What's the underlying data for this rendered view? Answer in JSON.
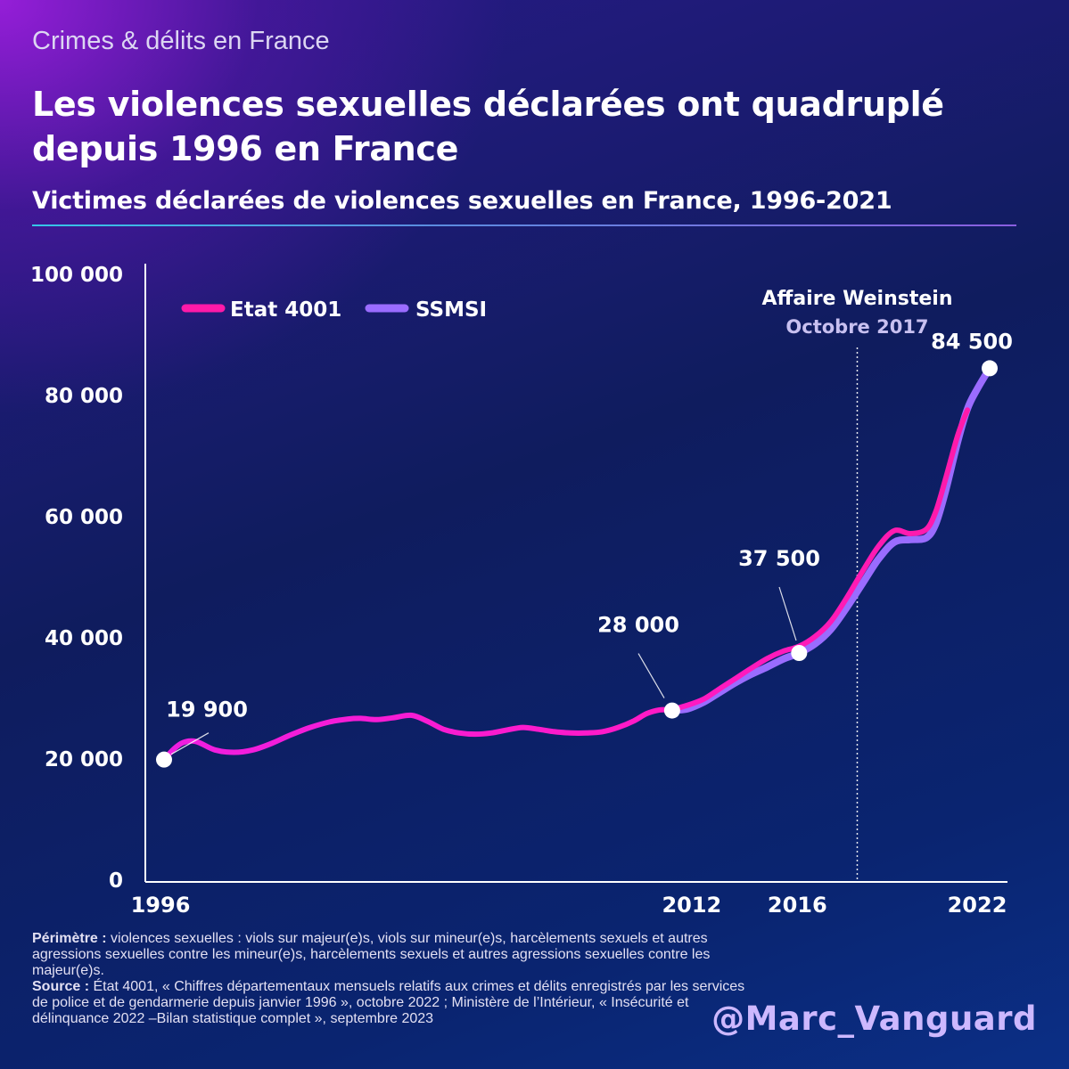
{
  "header": {
    "kicker": "Crimes & délits en France",
    "title": "Les violences sexuelles déclarées ont quadruplé depuis 1996 en France"
  },
  "chart_data": {
    "type": "line",
    "title": "Victimes déclarées de violences sexuelles en France, 1996-2021",
    "xlabel": "",
    "ylabel": "",
    "xlim": [
      1996,
      2022
    ],
    "ylim": [
      0,
      100000
    ],
    "y_ticks": [
      0,
      20000,
      40000,
      60000,
      80000,
      100000
    ],
    "y_tick_labels": [
      "0",
      "20 000",
      "40 000",
      "60 000",
      "80 000",
      "100 000"
    ],
    "x_tick_labels": [
      {
        "x": 1996,
        "label": "1996"
      },
      {
        "x": 2012,
        "label": "2012"
      },
      {
        "x": 2016,
        "label": "2016"
      },
      {
        "x": 2022,
        "label": "2022"
      }
    ],
    "series": [
      {
        "name": "Etat 4001",
        "color": "#ff1aa8",
        "x": [
          1996,
          1996.3,
          1996.6,
          1997,
          1997.6,
          1998.2,
          1998.8,
          1999.4,
          2000,
          2000.6,
          2001.2,
          2001.8,
          2002.2,
          2002.7,
          2003.2,
          2003.8,
          2004.3,
          2004.8,
          2005.3,
          2005.8,
          2006.3,
          2006.8,
          2007.3,
          2007.8,
          2008.3,
          2008.8,
          2009.3,
          2009.8,
          2010.3,
          2010.8,
          2011.2,
          2011.6,
          2012,
          2012.5,
          2013,
          2013.5,
          2014,
          2014.5,
          2015,
          2015.5,
          2016,
          2016.5,
          2017,
          2017.5,
          2018,
          2018.5,
          2019,
          2019.5,
          2020,
          2020.3,
          2020.6,
          2021,
          2021.3
        ],
        "y": [
          19900,
          21600,
          22700,
          22900,
          21500,
          21100,
          21500,
          22600,
          24000,
          25200,
          26100,
          26600,
          26700,
          26500,
          26800,
          27200,
          26200,
          24900,
          24300,
          24100,
          24300,
          24800,
          25200,
          24900,
          24500,
          24300,
          24300,
          24500,
          25200,
          26300,
          27500,
          28100,
          28200,
          28900,
          29900,
          31600,
          33300,
          35000,
          36600,
          37800,
          38600,
          40200,
          42700,
          46600,
          51000,
          55100,
          57700,
          57200,
          57900,
          60800,
          66000,
          73500,
          77600
        ]
      },
      {
        "name": "SSMSI",
        "color": "#9a6cff",
        "x": [
          2012,
          2012.5,
          2013,
          2013.5,
          2014,
          2014.5,
          2015,
          2015.5,
          2016,
          2016.5,
          2017,
          2017.5,
          2018,
          2018.5,
          2019,
          2019.5,
          2020,
          2020.3,
          2020.6,
          2021,
          2021.3,
          2021.6,
          2022
        ],
        "y": [
          28000,
          28300,
          29400,
          31000,
          32600,
          34000,
          35200,
          36500,
          37500,
          39000,
          41400,
          45000,
          49000,
          53000,
          55800,
          56200,
          56500,
          58800,
          64000,
          72500,
          77800,
          81000,
          84500
        ]
      }
    ],
    "data_labels": [
      {
        "x": 1996,
        "y": 19900,
        "label": "19 900"
      },
      {
        "x": 2012,
        "y": 28000,
        "label": "28 000"
      },
      {
        "x": 2016,
        "y": 37500,
        "label": "37 500"
      },
      {
        "x": 2022,
        "y": 84500,
        "label": "84 500"
      }
    ],
    "annotation": {
      "x": 2017.83,
      "title": "Affaire Weinstein",
      "subtitle": "Octobre 2017"
    },
    "legend_position": "top-left",
    "grid": false
  },
  "footnote": {
    "perimetre_label": "Périmètre :",
    "perimetre_text": "violences sexuelles : viols sur majeur(e)s, viols sur mineur(e)s, harcèlements sexuels et autres agressions sexuelles contre les mineur(e)s, harcèlements sexuels et autres agressions sexuelles contre les majeur(e)s.",
    "source_label": "Source :",
    "source_text": "État 4001, «  Chiffres départementaux mensuels relatifs aux crimes et délits enregistrés par les services de police et de gendarmerie depuis janvier 1996 », octobre 2022 ; Ministère de l’Intérieur, « Insécurité et délinquance 2022 –Bilan statistique complet », septembre 2023"
  },
  "handle": "@Marc_Vanguard",
  "colors": {
    "line_early": "#ee1ee0",
    "marker_fill": "#ffffff",
    "annotation_subtitle": "#c8c0f0",
    "handle": "#cdb8ff"
  }
}
